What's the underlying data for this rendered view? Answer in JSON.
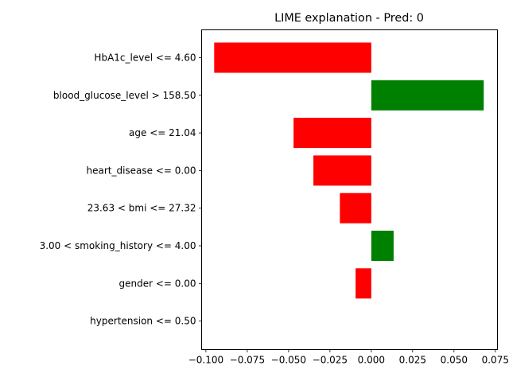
{
  "chart_data": {
    "type": "bar",
    "orientation": "horizontal",
    "title": "LIME explanation - Pred: 0",
    "xlabel": "",
    "ylabel": "",
    "xlim": [
      -0.1026,
      0.0763
    ],
    "grid": false,
    "categories": [
      "HbA1c_level <= 4.60",
      "blood_glucose_level > 158.50",
      "age <= 21.04",
      "heart_disease <= 0.00",
      "23.63 < bmi <= 27.32",
      "3.00 < smoking_history <= 4.00",
      "gender <= 0.00",
      "hypertension <= 0.50"
    ],
    "values": [
      -0.095,
      0.068,
      -0.047,
      -0.035,
      -0.019,
      0.0135,
      -0.0095,
      0.0
    ],
    "x_ticks": [
      -0.1,
      -0.075,
      -0.05,
      -0.025,
      0.0,
      0.025,
      0.05,
      0.075
    ],
    "x_tick_labels": [
      "−0.100",
      "−0.075",
      "−0.050",
      "−0.025",
      "0.000",
      "0.025",
      "0.050",
      "0.075"
    ],
    "colors": {
      "positive": "#008000",
      "negative": "#ff0000"
    }
  }
}
